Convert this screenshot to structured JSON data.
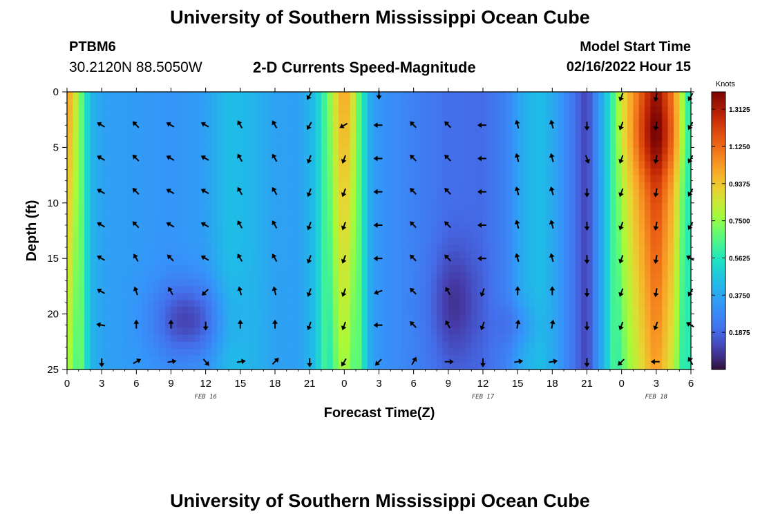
{
  "header": {
    "title": "University of Southern Mississippi Ocean Cube",
    "station": "PTBM6",
    "coords": "30.2120N  88.5050W",
    "subtitle": "2-D Currents Speed-Magnitude",
    "model_label": "Model Start Time",
    "model_time": "02/16/2022 Hour 15"
  },
  "footer": {
    "title": "University of Southern Mississippi Ocean Cube"
  },
  "colors": {
    "arrow": "#000000",
    "background": "#ffffff",
    "frame": "#000000"
  },
  "chart_data": {
    "type": "heatmap",
    "title": "2-D Currents Speed-Magnitude",
    "xlabel": "Forecast Time(Z)",
    "ylabel": "Depth (ft)",
    "x_range_hours": [
      0,
      54
    ],
    "ylim": [
      0,
      25
    ],
    "y_inverted": true,
    "x_ticks": [
      {
        "h": 0,
        "label": "0"
      },
      {
        "h": 3,
        "label": "3"
      },
      {
        "h": 6,
        "label": "6"
      },
      {
        "h": 9,
        "label": "9"
      },
      {
        "h": 12,
        "label": "12"
      },
      {
        "h": 15,
        "label": "15"
      },
      {
        "h": 18,
        "label": "18"
      },
      {
        "h": 21,
        "label": "21"
      },
      {
        "h": 24,
        "label": "0"
      },
      {
        "h": 27,
        "label": "3"
      },
      {
        "h": 30,
        "label": "6"
      },
      {
        "h": 33,
        "label": "9"
      },
      {
        "h": 36,
        "label": "12"
      },
      {
        "h": 39,
        "label": "15"
      },
      {
        "h": 42,
        "label": "18"
      },
      {
        "h": 45,
        "label": "21"
      },
      {
        "h": 48,
        "label": "0"
      },
      {
        "h": 51,
        "label": "3"
      },
      {
        "h": 54,
        "label": "6"
      }
    ],
    "y_ticks": [
      {
        "d": 0,
        "label": "0"
      },
      {
        "d": 5,
        "label": "5"
      },
      {
        "d": 10,
        "label": "10"
      },
      {
        "d": 15,
        "label": "15"
      },
      {
        "d": 20,
        "label": "20"
      },
      {
        "d": 25,
        "label": "25"
      }
    ],
    "date_labels": [
      {
        "h": 12,
        "label": "FEB 16"
      },
      {
        "h": 36,
        "label": "FEB 17"
      },
      {
        "h": 51,
        "label": "FEB 18"
      }
    ],
    "colorbar": {
      "title": "Knots",
      "range": [
        0.0,
        1.4
      ],
      "ticks": [
        1.3125,
        1.125,
        0.9375,
        0.75,
        0.5625,
        0.375,
        0.1875
      ],
      "tick_labels": [
        "1.3125",
        "1.1250",
        "0.9375",
        "0.7500",
        "0.5625",
        "0.3750",
        "0.1875"
      ]
    },
    "speed_profile": [
      {
        "h": 0.0,
        "s": 1.05
      },
      {
        "h": 1.0,
        "s": 0.78
      },
      {
        "h": 1.6,
        "s": 0.55
      },
      {
        "h": 2.2,
        "s": 0.42
      },
      {
        "h": 3.0,
        "s": 0.36
      },
      {
        "h": 6.0,
        "s": 0.34
      },
      {
        "h": 9.0,
        "s": 0.32
      },
      {
        "h": 12.0,
        "s": 0.35
      },
      {
        "h": 14.0,
        "s": 0.45
      },
      {
        "h": 16.0,
        "s": 0.42
      },
      {
        "h": 18.0,
        "s": 0.36
      },
      {
        "h": 20.0,
        "s": 0.35
      },
      {
        "h": 21.5,
        "s": 0.45
      },
      {
        "h": 22.6,
        "s": 0.7
      },
      {
        "h": 23.4,
        "s": 0.92
      },
      {
        "h": 24.0,
        "s": 1.02
      },
      {
        "h": 24.6,
        "s": 0.92
      },
      {
        "h": 25.4,
        "s": 0.62
      },
      {
        "h": 26.3,
        "s": 0.38
      },
      {
        "h": 27.0,
        "s": 0.32
      },
      {
        "h": 30.0,
        "s": 0.26
      },
      {
        "h": 33.0,
        "s": 0.2
      },
      {
        "h": 36.0,
        "s": 0.19
      },
      {
        "h": 38.0,
        "s": 0.26
      },
      {
        "h": 39.5,
        "s": 0.4
      },
      {
        "h": 41.0,
        "s": 0.45
      },
      {
        "h": 42.5,
        "s": 0.35
      },
      {
        "h": 44.0,
        "s": 0.2
      },
      {
        "h": 45.0,
        "s": 0.1
      },
      {
        "h": 46.0,
        "s": 0.32
      },
      {
        "h": 47.0,
        "s": 0.55
      },
      {
        "h": 48.0,
        "s": 0.85
      },
      {
        "h": 49.5,
        "s": 1.1
      },
      {
        "h": 51.0,
        "s": 1.33
      },
      {
        "h": 52.5,
        "s": 1.05
      },
      {
        "h": 53.4,
        "s": 0.7
      },
      {
        "h": 54.0,
        "s": 0.5
      }
    ],
    "vectors": [
      {
        "h": 3,
        "d": 3,
        "dir": 300
      },
      {
        "h": 6,
        "d": 3,
        "dir": 315
      },
      {
        "h": 9,
        "d": 3,
        "dir": 300
      },
      {
        "h": 12,
        "d": 3,
        "dir": 300
      },
      {
        "h": 15,
        "d": 3,
        "dir": 330
      },
      {
        "h": 18,
        "d": 3,
        "dir": 330
      },
      {
        "h": 21,
        "d": 3,
        "dir": 210
      },
      {
        "h": 24,
        "d": 3,
        "dir": 240
      },
      {
        "h": 27,
        "d": 3,
        "dir": 270
      },
      {
        "h": 30,
        "d": 3,
        "dir": 315
      },
      {
        "h": 33,
        "d": 3,
        "dir": 315
      },
      {
        "h": 36,
        "d": 3,
        "dir": 270
      },
      {
        "h": 39,
        "d": 3,
        "dir": 345
      },
      {
        "h": 42,
        "d": 3,
        "dir": 345
      },
      {
        "h": 45,
        "d": 3,
        "dir": 180
      },
      {
        "h": 48,
        "d": 3,
        "dir": 200
      },
      {
        "h": 51,
        "d": 3,
        "dir": 190
      },
      {
        "h": 54,
        "d": 3,
        "dir": 210
      },
      {
        "h": 3,
        "d": 6,
        "dir": 300
      },
      {
        "h": 6,
        "d": 6,
        "dir": 315
      },
      {
        "h": 9,
        "d": 6,
        "dir": 300
      },
      {
        "h": 12,
        "d": 6,
        "dir": 300
      },
      {
        "h": 15,
        "d": 6,
        "dir": 330
      },
      {
        "h": 18,
        "d": 6,
        "dir": 330
      },
      {
        "h": 21,
        "d": 6,
        "dir": 200
      },
      {
        "h": 24,
        "d": 6,
        "dir": 200
      },
      {
        "h": 27,
        "d": 6,
        "dir": 270
      },
      {
        "h": 30,
        "d": 6,
        "dir": 315
      },
      {
        "h": 33,
        "d": 6,
        "dir": 315
      },
      {
        "h": 36,
        "d": 6,
        "dir": 270
      },
      {
        "h": 39,
        "d": 6,
        "dir": 345
      },
      {
        "h": 42,
        "d": 6,
        "dir": 345
      },
      {
        "h": 45,
        "d": 6,
        "dir": 160
      },
      {
        "h": 48,
        "d": 6,
        "dir": 200
      },
      {
        "h": 51,
        "d": 6,
        "dir": 190
      },
      {
        "h": 54,
        "d": 6,
        "dir": 210
      },
      {
        "h": 3,
        "d": 9,
        "dir": 300
      },
      {
        "h": 6,
        "d": 9,
        "dir": 315
      },
      {
        "h": 9,
        "d": 9,
        "dir": 300
      },
      {
        "h": 12,
        "d": 9,
        "dir": 300
      },
      {
        "h": 15,
        "d": 9,
        "dir": 330
      },
      {
        "h": 18,
        "d": 9,
        "dir": 330
      },
      {
        "h": 21,
        "d": 9,
        "dir": 200
      },
      {
        "h": 24,
        "d": 9,
        "dir": 200
      },
      {
        "h": 27,
        "d": 9,
        "dir": 270
      },
      {
        "h": 30,
        "d": 9,
        "dir": 315
      },
      {
        "h": 33,
        "d": 9,
        "dir": 315
      },
      {
        "h": 36,
        "d": 9,
        "dir": 270
      },
      {
        "h": 39,
        "d": 9,
        "dir": 345
      },
      {
        "h": 42,
        "d": 9,
        "dir": 345
      },
      {
        "h": 45,
        "d": 9,
        "dir": 180
      },
      {
        "h": 48,
        "d": 9,
        "dir": 200
      },
      {
        "h": 51,
        "d": 9,
        "dir": 190
      },
      {
        "h": 54,
        "d": 9,
        "dir": 210
      },
      {
        "h": 3,
        "d": 12,
        "dir": 300
      },
      {
        "h": 6,
        "d": 12,
        "dir": 315
      },
      {
        "h": 9,
        "d": 12,
        "dir": 300
      },
      {
        "h": 12,
        "d": 12,
        "dir": 300
      },
      {
        "h": 15,
        "d": 12,
        "dir": 330
      },
      {
        "h": 18,
        "d": 12,
        "dir": 330
      },
      {
        "h": 21,
        "d": 12,
        "dir": 200
      },
      {
        "h": 24,
        "d": 12,
        "dir": 200
      },
      {
        "h": 27,
        "d": 12,
        "dir": 270
      },
      {
        "h": 30,
        "d": 12,
        "dir": 315
      },
      {
        "h": 33,
        "d": 12,
        "dir": 315
      },
      {
        "h": 36,
        "d": 12,
        "dir": 270
      },
      {
        "h": 39,
        "d": 12,
        "dir": 345
      },
      {
        "h": 42,
        "d": 12,
        "dir": 345
      },
      {
        "h": 45,
        "d": 12,
        "dir": 180
      },
      {
        "h": 48,
        "d": 12,
        "dir": 200
      },
      {
        "h": 51,
        "d": 12,
        "dir": 190
      },
      {
        "h": 54,
        "d": 12,
        "dir": 210
      },
      {
        "h": 3,
        "d": 15,
        "dir": 300
      },
      {
        "h": 6,
        "d": 15,
        "dir": 330
      },
      {
        "h": 9,
        "d": 15,
        "dir": 315
      },
      {
        "h": 12,
        "d": 15,
        "dir": 300
      },
      {
        "h": 15,
        "d": 15,
        "dir": 330
      },
      {
        "h": 18,
        "d": 15,
        "dir": 330
      },
      {
        "h": 21,
        "d": 15,
        "dir": 200
      },
      {
        "h": 24,
        "d": 15,
        "dir": 200
      },
      {
        "h": 27,
        "d": 15,
        "dir": 270
      },
      {
        "h": 30,
        "d": 15,
        "dir": 315
      },
      {
        "h": 33,
        "d": 15,
        "dir": 315
      },
      {
        "h": 36,
        "d": 15,
        "dir": 270
      },
      {
        "h": 39,
        "d": 15,
        "dir": 345
      },
      {
        "h": 42,
        "d": 15,
        "dir": 345
      },
      {
        "h": 45,
        "d": 15,
        "dir": 180
      },
      {
        "h": 48,
        "d": 15,
        "dir": 200
      },
      {
        "h": 51,
        "d": 15,
        "dir": 190
      },
      {
        "h": 54,
        "d": 15,
        "dir": 300
      },
      {
        "h": 3,
        "d": 18,
        "dir": 300
      },
      {
        "h": 6,
        "d": 18,
        "dir": 340
      },
      {
        "h": 9,
        "d": 18,
        "dir": 330
      },
      {
        "h": 12,
        "d": 18,
        "dir": 225
      },
      {
        "h": 15,
        "d": 18,
        "dir": 345
      },
      {
        "h": 18,
        "d": 18,
        "dir": 345
      },
      {
        "h": 21,
        "d": 18,
        "dir": 200
      },
      {
        "h": 24,
        "d": 18,
        "dir": 200
      },
      {
        "h": 27,
        "d": 18,
        "dir": 250
      },
      {
        "h": 30,
        "d": 18,
        "dir": 315
      },
      {
        "h": 33,
        "d": 18,
        "dir": 330
      },
      {
        "h": 36,
        "d": 18,
        "dir": 200
      },
      {
        "h": 39,
        "d": 18,
        "dir": 0
      },
      {
        "h": 42,
        "d": 18,
        "dir": 0
      },
      {
        "h": 45,
        "d": 18,
        "dir": 180
      },
      {
        "h": 48,
        "d": 18,
        "dir": 200
      },
      {
        "h": 51,
        "d": 18,
        "dir": 190
      },
      {
        "h": 54,
        "d": 18,
        "dir": 210
      },
      {
        "h": 3,
        "d": 21,
        "dir": 280
      },
      {
        "h": 6,
        "d": 21,
        "dir": 0
      },
      {
        "h": 9,
        "d": 21,
        "dir": 0
      },
      {
        "h": 12,
        "d": 21,
        "dir": 180
      },
      {
        "h": 15,
        "d": 21,
        "dir": 0
      },
      {
        "h": 18,
        "d": 21,
        "dir": 0
      },
      {
        "h": 21,
        "d": 21,
        "dir": 200
      },
      {
        "h": 24,
        "d": 21,
        "dir": 200
      },
      {
        "h": 27,
        "d": 21,
        "dir": 270
      },
      {
        "h": 30,
        "d": 21,
        "dir": 315
      },
      {
        "h": 33,
        "d": 21,
        "dir": 330
      },
      {
        "h": 36,
        "d": 21,
        "dir": 200
      },
      {
        "h": 39,
        "d": 21,
        "dir": 10
      },
      {
        "h": 42,
        "d": 21,
        "dir": 10
      },
      {
        "h": 45,
        "d": 21,
        "dir": 180
      },
      {
        "h": 48,
        "d": 21,
        "dir": 200
      },
      {
        "h": 51,
        "d": 21,
        "dir": 200
      },
      {
        "h": 54,
        "d": 21,
        "dir": 300
      },
      {
        "h": 3,
        "d": 24.3,
        "dir": 180
      },
      {
        "h": 6,
        "d": 24.3,
        "dir": 60
      },
      {
        "h": 9,
        "d": 24.3,
        "dir": 80
      },
      {
        "h": 12,
        "d": 24.3,
        "dir": 140
      },
      {
        "h": 15,
        "d": 24.3,
        "dir": 80
      },
      {
        "h": 18,
        "d": 24.3,
        "dir": 45
      },
      {
        "h": 21,
        "d": 24.3,
        "dir": 180
      },
      {
        "h": 24,
        "d": 24.3,
        "dir": 210
      },
      {
        "h": 27,
        "d": 24.3,
        "dir": 225
      },
      {
        "h": 30,
        "d": 24.3,
        "dir": 30
      },
      {
        "h": 33,
        "d": 24.3,
        "dir": 90
      },
      {
        "h": 36,
        "d": 24.3,
        "dir": 180
      },
      {
        "h": 39,
        "d": 24.3,
        "dir": 80
      },
      {
        "h": 42,
        "d": 24.3,
        "dir": 80
      },
      {
        "h": 45,
        "d": 24.3,
        "dir": 180
      },
      {
        "h": 48,
        "d": 24.3,
        "dir": 225
      },
      {
        "h": 51,
        "d": 24.3,
        "dir": 270
      },
      {
        "h": 54,
        "d": 24.3,
        "dir": 330
      },
      {
        "h": 21,
        "d": 0.3,
        "dir": 210
      },
      {
        "h": 27,
        "d": 0.2,
        "dir": 180
      },
      {
        "h": 48,
        "d": 0.4,
        "dir": 200
      },
      {
        "h": 51,
        "d": 0.4,
        "dir": 190
      },
      {
        "h": 54,
        "d": 0.4,
        "dir": 210
      }
    ]
  }
}
